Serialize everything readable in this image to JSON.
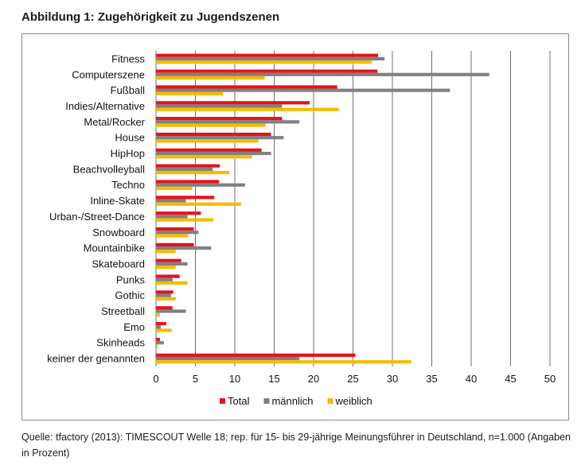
{
  "title": "Abbildung 1: Zugehörigkeit zu Jugendszenen",
  "source": "Quelle: tfactory (2013): TIMESCOUT Welle 18; rep. für 15- bis 29-jährige Meinungsführer in Deutschland, n=1.000 (Angaben in Prozent)",
  "chart_data": {
    "type": "bar",
    "orientation": "horizontal",
    "categories": [
      "Fitness",
      "Computerszene",
      "Fußball",
      "Indies/Alternative",
      "Metal/Rocker",
      "House",
      "HipHop",
      "Beachvolleyball",
      "Techno",
      "Inline-Skate",
      "Urban-/Street-Dance",
      "Snowboard",
      "Mountainbike",
      "Skateboard",
      "Punks",
      "Gothic",
      "Streetball",
      "Emo",
      "Skinheads",
      "keiner der genannten"
    ],
    "series": [
      {
        "name": "Total",
        "color": "#e3141b",
        "values": [
          28.2,
          28.1,
          23.0,
          19.5,
          16.0,
          14.6,
          13.4,
          8.1,
          8.0,
          7.4,
          5.7,
          4.8,
          4.8,
          3.2,
          3.0,
          2.2,
          2.1,
          1.3,
          0.5,
          25.3
        ]
      },
      {
        "name": "männlich",
        "color": "#808080",
        "values": [
          29.0,
          42.3,
          37.3,
          16.0,
          18.2,
          16.2,
          14.6,
          7.2,
          11.3,
          3.8,
          4.0,
          5.4,
          7.0,
          4.0,
          2.1,
          1.9,
          3.8,
          0.6,
          1.0,
          18.2
        ]
      },
      {
        "name": "weiblich",
        "color": "#f5bb00",
        "values": [
          27.4,
          13.8,
          8.5,
          23.2,
          13.9,
          13.0,
          12.2,
          9.3,
          4.6,
          10.8,
          7.3,
          4.1,
          2.5,
          2.5,
          4.0,
          2.5,
          0.5,
          2.0,
          0.2,
          32.4
        ]
      }
    ],
    "xlim": [
      0,
      50
    ],
    "xticks": [
      0,
      5,
      10,
      15,
      20,
      25,
      30,
      35,
      40,
      45,
      50
    ],
    "grid": "vertical lines at each tick",
    "legend_position": "bottom"
  }
}
